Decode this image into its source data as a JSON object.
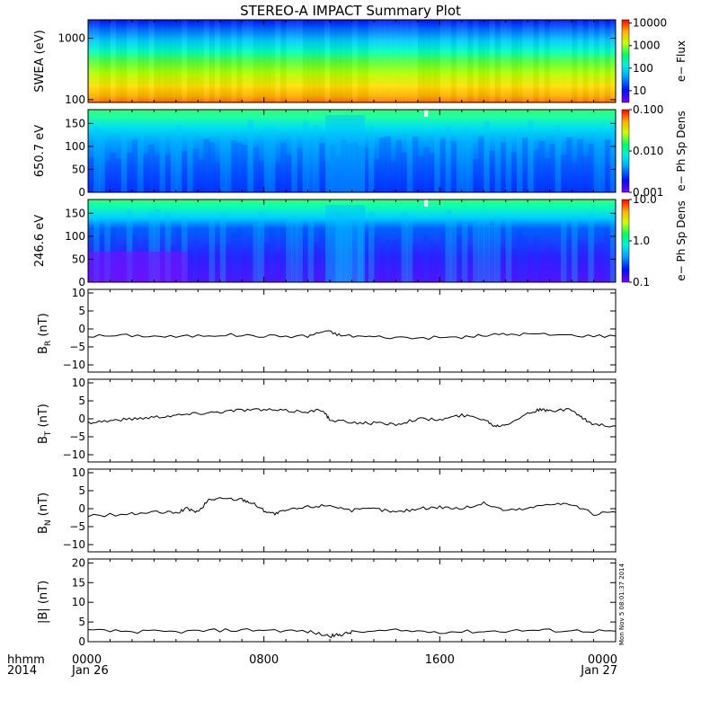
{
  "chart_data": {
    "type": "summary-plot",
    "title": "STEREO-A IMPACT Summary Plot",
    "x_axis": {
      "start": "2014-01-26 00:00",
      "end": "2014-01-27 00:00",
      "label_lines": [
        "hhmm",
        "2014"
      ],
      "ticks": [
        {
          "hours": 0,
          "time": "0000",
          "date": "Jan 26"
        },
        {
          "hours": 8,
          "time": "0800",
          "date": ""
        },
        {
          "hours": 16,
          "time": "1600",
          "date": ""
        },
        {
          "hours": 24,
          "time": "0000",
          "date": "Jan 27"
        }
      ]
    },
    "spectrograms": [
      {
        "ylabel": "SWEA (eV)",
        "yscale": "log",
        "ylim": [
          90,
          2000
        ],
        "yticks": [
          {
            "v": 100,
            "label": "100"
          },
          {
            "v": 1000,
            "label": "1000"
          }
        ],
        "colorbar": {
          "label": "e− Flux",
          "scale": "log",
          "range": [
            3,
            14000
          ],
          "ticks": [
            {
              "v": 10,
              "label": "10"
            },
            {
              "v": 100,
              "label": "100"
            },
            {
              "v": 1000,
              "label": "1000"
            },
            {
              "v": 10000,
              "label": "10000"
            }
          ]
        }
      },
      {
        "ylabel": "650.7 eV",
        "yscale": "linear",
        "ylim": [
          0,
          180
        ],
        "yticks": [
          {
            "v": 0,
            "label": "0"
          },
          {
            "v": 50,
            "label": "50"
          },
          {
            "v": 100,
            "label": "100"
          },
          {
            "v": 150,
            "label": "150"
          }
        ],
        "colorbar": {
          "label": "e− Ph Sp Dens",
          "scale": "log",
          "range": [
            0.001,
            0.1
          ],
          "ticks": [
            {
              "v": 0.001,
              "label": "0.001"
            },
            {
              "v": 0.01,
              "label": "0.010"
            },
            {
              "v": 0.1,
              "label": "0.100"
            }
          ]
        }
      },
      {
        "ylabel": "246.6 eV",
        "yscale": "linear",
        "ylim": [
          0,
          180
        ],
        "yticks": [
          {
            "v": 0,
            "label": "0"
          },
          {
            "v": 50,
            "label": "50"
          },
          {
            "v": 100,
            "label": "100"
          },
          {
            "v": 150,
            "label": "150"
          }
        ],
        "colorbar": {
          "label": "e− Ph Sp Dens",
          "scale": "log",
          "range": [
            0.1,
            10
          ],
          "ticks": [
            {
              "v": 0.1,
              "label": "0.1"
            },
            {
              "v": 1,
              "label": "1.0"
            },
            {
              "v": 10,
              "label": "10.0"
            }
          ]
        }
      }
    ],
    "line_panels": [
      {
        "ylabel": "B",
        "subscript": "R",
        "unit": " (nT)",
        "ylim": [
          -12,
          11
        ],
        "yticks": [
          {
            "v": -10,
            "label": "−10"
          },
          {
            "v": -5,
            "label": "−5"
          },
          {
            "v": 0,
            "label": "0"
          },
          {
            "v": 5,
            "label": "5"
          },
          {
            "v": 10,
            "label": "10"
          }
        ],
        "series": [
          {
            "x": [
              0,
              2,
              4,
              6,
              8,
              10,
              10.8,
              11.5,
              13,
              15,
              17,
              18.5,
              20,
              22,
              24
            ],
            "y": [
              -2,
              -1.8,
              -2.2,
              -1.6,
              -2,
              -2,
              -0.5,
              -1.8,
              -2.2,
              -2.5,
              -2.3,
              -1.6,
              -1.4,
              -1.8,
              -2
            ]
          }
        ]
      },
      {
        "ylabel": "B",
        "subscript": "T",
        "unit": " (nT)",
        "ylim": [
          -12,
          11
        ],
        "yticks": [
          {
            "v": -10,
            "label": "−10"
          },
          {
            "v": -5,
            "label": "−5"
          },
          {
            "v": 0,
            "label": "0"
          },
          {
            "v": 5,
            "label": "5"
          },
          {
            "v": 10,
            "label": "10"
          }
        ],
        "series": [
          {
            "x": [
              0,
              1,
              2,
              3,
              4,
              5,
              6,
              7,
              8,
              9,
              10,
              10.7,
              11,
              12,
              13,
              14,
              15,
              16,
              17,
              18,
              18.5,
              19,
              20,
              20.5,
              21,
              22,
              22.5,
              23,
              24
            ],
            "y": [
              -1,
              -0.5,
              0,
              0.5,
              1,
              1.5,
              2,
              2.5,
              2.5,
              2.2,
              2.0,
              2.5,
              -0.5,
              -1,
              -1.2,
              -1.5,
              0,
              -0.3,
              1.0,
              0,
              -2.0,
              -1.5,
              1.5,
              2.5,
              2.2,
              2.5,
              0,
              -1.5,
              -2
            ]
          }
        ]
      },
      {
        "ylabel": "B",
        "subscript": "N",
        "unit": " (nT)",
        "ylim": [
          -12,
          11
        ],
        "yticks": [
          {
            "v": -10,
            "label": "−10"
          },
          {
            "v": -5,
            "label": "−5"
          },
          {
            "v": 0,
            "label": "0"
          },
          {
            "v": 5,
            "label": "5"
          },
          {
            "v": 10,
            "label": "10"
          }
        ],
        "series": [
          {
            "x": [
              0,
              2,
              3,
              4,
              4.5,
              5,
              5.5,
              6,
              7,
              7.5,
              8,
              8.5,
              9,
              10,
              11,
              12,
              13,
              14,
              15,
              16,
              17,
              18,
              19,
              20,
              21,
              22,
              23,
              24
            ],
            "y": [
              -2,
              -1.5,
              -1,
              -1.2,
              0,
              -1,
              2.5,
              2.8,
              2.6,
              1.5,
              -0.5,
              -1.5,
              -0.5,
              0.5,
              1,
              -0.5,
              0,
              -1,
              0,
              0.5,
              0,
              1.5,
              -0.5,
              0,
              1.5,
              1.2,
              -1.5,
              -1
            ]
          }
        ]
      },
      {
        "ylabel": "|B|",
        "subscript": "",
        "unit": " (nT)",
        "ylim": [
          0,
          21
        ],
        "yticks": [
          {
            "v": 0,
            "label": "0"
          },
          {
            "v": 5,
            "label": "5"
          },
          {
            "v": 10,
            "label": "10"
          },
          {
            "v": 15,
            "label": "15"
          },
          {
            "v": 20,
            "label": "20"
          }
        ],
        "series": [
          {
            "x": [
              0,
              2,
              4,
              6,
              8,
              10,
              11,
              11.5,
              12,
              14,
              16,
              18,
              20,
              22,
              24
            ],
            "y": [
              2.8,
              2.6,
              2.5,
              2.9,
              3.0,
              2.6,
              1.4,
              1.8,
              2.4,
              2.8,
              2.5,
              2.6,
              2.9,
              2.8,
              2.7
            ]
          }
        ]
      }
    ],
    "stamp": "Mon Nov  5 08:01:37 2014"
  }
}
